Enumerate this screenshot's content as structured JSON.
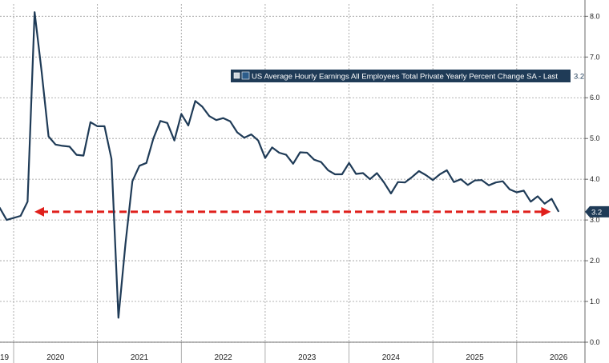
{
  "chart_data": {
    "type": "line",
    "x_start": "2019-10",
    "series": [
      {
        "name": "US Average Hourly Earnings All Employees Total Private Yearly Percent Change SA - Last",
        "color": "#1f3b57",
        "values": [
          3.2,
          3.3,
          3.0,
          3.05,
          3.1,
          3.45,
          8.1,
          6.65,
          5.05,
          4.85,
          4.82,
          4.8,
          4.6,
          4.58,
          5.4,
          5.3,
          5.3,
          4.5,
          0.6,
          2.4,
          3.95,
          4.33,
          4.4,
          5.0,
          5.43,
          5.38,
          4.95,
          5.6,
          5.32,
          5.92,
          5.78,
          5.55,
          5.45,
          5.5,
          5.42,
          5.15,
          5.02,
          5.1,
          4.95,
          4.52,
          4.78,
          4.65,
          4.6,
          4.38,
          4.66,
          4.65,
          4.48,
          4.42,
          4.22,
          4.12,
          4.12,
          4.4,
          4.13,
          4.15,
          4.0,
          4.15,
          3.92,
          3.65,
          3.93,
          3.92,
          4.05,
          4.2,
          4.1,
          3.98,
          4.12,
          4.22,
          3.93,
          4.0,
          3.86,
          3.97,
          3.98,
          3.85,
          3.92,
          3.95,
          3.75,
          3.68,
          3.72,
          3.45,
          3.58,
          3.4,
          3.52,
          3.2
        ]
      }
    ],
    "last_value_label": "3.2",
    "reference_line": {
      "value": 3.2,
      "from": "2020-01",
      "to": "2026-06",
      "color": "#e0201c",
      "style": "dashed-arrows"
    },
    "x_tick_labels": [
      "19",
      "2020",
      "2021",
      "2022",
      "2023",
      "2024",
      "2025",
      "2026"
    ],
    "x_tick_dates": [
      "2019-07",
      "2020-07",
      "2021-07",
      "2022-07",
      "2023-07",
      "2024-07",
      "2025-07",
      "2026-07"
    ],
    "year_boundaries": [
      "2020-01",
      "2021-01",
      "2022-01",
      "2023-01",
      "2024-01",
      "2025-01",
      "2026-01"
    ],
    "y_ticks": [
      "8.0",
      "7.0",
      "6.0",
      "5.0",
      "4.0",
      "3.0",
      "2.0",
      "1.0",
      "0.0"
    ],
    "ylim": [
      0,
      8.3
    ],
    "grid": true,
    "legend_position": "top-right",
    "colors": {
      "axis_label_box": "#1f3b57",
      "legend_box": "#1f3b57"
    }
  }
}
